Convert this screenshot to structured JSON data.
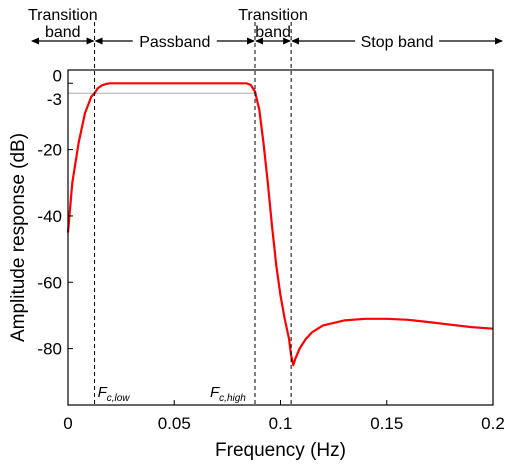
{
  "chart_data": {
    "type": "line",
    "xlabel": "Frequency (Hz)",
    "ylabel": "Amplitude response (dB)",
    "xlim": [
      0,
      0.2
    ],
    "ylim": [
      -97,
      4
    ],
    "x_ticks": [
      0,
      0.05,
      0.1,
      0.15,
      0.2
    ],
    "x_tick_labels": [
      "0",
      "0.05",
      "0.1",
      "0.15",
      "0.2"
    ],
    "y_ticks": [
      0,
      -3,
      -20,
      -40,
      -60,
      -80
    ],
    "y_tick_labels": [
      "0",
      "-3",
      "-20",
      "-40",
      "-60",
      "-80"
    ],
    "grid": false,
    "colors": {
      "series": "#ff0000",
      "reference_line": "#bbbbbb"
    },
    "reference_line_y": -3,
    "cutoffs": [
      {
        "x": 0.0125,
        "base": "F",
        "subscript": "c,low"
      },
      {
        "x": 0.088,
        "base": "F",
        "subscript": "c,high"
      }
    ],
    "boundary_x": 0.105,
    "bands": [
      {
        "label": [
          "Transition",
          "band"
        ],
        "x_range": [
          0,
          0.0125
        ]
      },
      {
        "label": [
          "Passband"
        ],
        "x_range": [
          0.0125,
          0.088
        ]
      },
      {
        "label": [
          "Transition",
          "band"
        ],
        "x_range": [
          0.088,
          0.105
        ]
      },
      {
        "label": [
          "Stop band"
        ],
        "x_range": [
          0.105,
          0.2
        ]
      }
    ],
    "series": [
      {
        "x": [
          0,
          0.002,
          0.005,
          0.008,
          0.011,
          0.0125,
          0.014,
          0.016,
          0.018,
          0.02,
          0.03,
          0.05,
          0.07,
          0.08,
          0.084,
          0.086,
          0.088,
          0.09,
          0.092,
          0.094,
          0.096,
          0.098,
          0.1,
          0.102,
          0.104,
          0.105,
          0.106,
          0.107,
          0.109,
          0.112,
          0.115,
          0.12,
          0.13,
          0.14,
          0.15,
          0.16,
          0.17,
          0.18,
          0.19,
          0.2
        ],
        "y": [
          -45,
          -30,
          -18,
          -9,
          -4,
          -3,
          -1.5,
          -0.6,
          -0.2,
          0,
          0,
          0,
          0,
          0,
          0,
          -0.5,
          -2.5,
          -8,
          -18,
          -30,
          -43,
          -55,
          -64,
          -71,
          -77,
          -82,
          -85,
          -83,
          -80,
          -77,
          -75,
          -73,
          -71.5,
          -71,
          -71,
          -71.3,
          -72,
          -72.8,
          -73.5,
          -74
        ]
      }
    ]
  }
}
